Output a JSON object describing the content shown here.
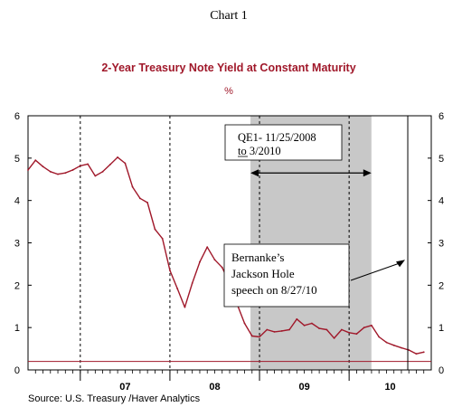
{
  "chart_data": {
    "type": "line",
    "chart_label": "Chart 1",
    "title": "2-Year Treasury Note Yield at Constant Maturity",
    "subtitle": "%",
    "source": "Source:  U.S. Treasury /Haver Analytics",
    "ylim": [
      0,
      6
    ],
    "yticks": [
      "0",
      "1",
      "2",
      "3",
      "4",
      "5",
      "6"
    ],
    "xlim": [
      "2006-06",
      "2010-12"
    ],
    "xticks": [
      {
        "label": "07",
        "year": 2007
      },
      {
        "label": "08",
        "year": 2008
      },
      {
        "label": "09",
        "year": 2009
      },
      {
        "label": "10",
        "year": 2010
      }
    ],
    "series": [
      {
        "color": "#a0182a",
        "points": [
          [
            "2006-06",
            4.72
          ],
          [
            "2006-07",
            4.95
          ],
          [
            "2006-08",
            4.8
          ],
          [
            "2006-09",
            4.68
          ],
          [
            "2006-10",
            4.62
          ],
          [
            "2006-11",
            4.65
          ],
          [
            "2006-12",
            4.72
          ],
          [
            "2007-01",
            4.82
          ],
          [
            "2007-02",
            4.86
          ],
          [
            "2007-03",
            4.58
          ],
          [
            "2007-04",
            4.68
          ],
          [
            "2007-05",
            4.85
          ],
          [
            "2007-06",
            5.02
          ],
          [
            "2007-07",
            4.88
          ],
          [
            "2007-08",
            4.32
          ],
          [
            "2007-09",
            4.05
          ],
          [
            "2007-10",
            3.95
          ],
          [
            "2007-11",
            3.32
          ],
          [
            "2007-12",
            3.1
          ],
          [
            "2008-01",
            2.35
          ],
          [
            "2008-02",
            1.92
          ],
          [
            "2008-03",
            1.48
          ],
          [
            "2008-04",
            2.05
          ],
          [
            "2008-05",
            2.55
          ],
          [
            "2008-06",
            2.9
          ],
          [
            "2008-07",
            2.6
          ],
          [
            "2008-08",
            2.42
          ],
          [
            "2008-09",
            2.05
          ],
          [
            "2008-10",
            1.55
          ],
          [
            "2008-11",
            1.1
          ],
          [
            "2008-12",
            0.8
          ],
          [
            "2009-01",
            0.78
          ],
          [
            "2009-02",
            0.95
          ],
          [
            "2009-03",
            0.9
          ],
          [
            "2009-04",
            0.92
          ],
          [
            "2009-05",
            0.95
          ],
          [
            "2009-06",
            1.2
          ],
          [
            "2009-07",
            1.05
          ],
          [
            "2009-08",
            1.1
          ],
          [
            "2009-09",
            0.98
          ],
          [
            "2009-10",
            0.95
          ],
          [
            "2009-11",
            0.75
          ],
          [
            "2009-12",
            0.95
          ],
          [
            "2010-01",
            0.88
          ],
          [
            "2010-02",
            0.85
          ],
          [
            "2010-03",
            1.0
          ],
          [
            "2010-04",
            1.05
          ],
          [
            "2010-05",
            0.78
          ],
          [
            "2010-06",
            0.65
          ],
          [
            "2010-07",
            0.58
          ],
          [
            "2010-08",
            0.52
          ],
          [
            "2010-09",
            0.47
          ],
          [
            "2010-10",
            0.38
          ],
          [
            "2010-11",
            0.42
          ]
        ]
      }
    ],
    "shaded_period": {
      "start": "2008-11-25",
      "end": "2010-03-31"
    },
    "dashed_lines": [
      "2007-01-01",
      "2008-01-01",
      "2009-01-01",
      "2010-01-01"
    ],
    "reference_line": {
      "date": "2010-08-27"
    },
    "baseline_value": 0.2,
    "annotations": [
      {
        "lines": [
          "QE1- 11/25/2008",
          "to 3/2010"
        ],
        "underlined": "to"
      },
      {
        "lines": [
          "Bernanke’s",
          "Jackson Hole",
          "speech on 8/27/10"
        ]
      }
    ]
  }
}
